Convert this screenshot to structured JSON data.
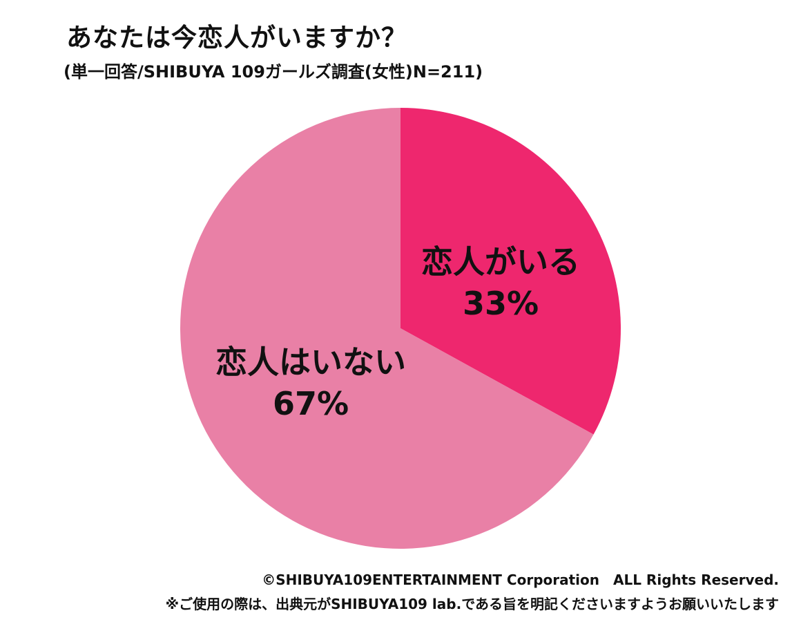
{
  "chart_data": {
    "type": "pie",
    "title": "あなたは今恋人がいますか？",
    "subtitle": "(単一回答/SHIBUYA 109ガールズ調査(女性)N=211)",
    "slices": [
      {
        "label": "恋人がいる",
        "value": 33,
        "value_label": "33%",
        "color": "#ee276e"
      },
      {
        "label": "恋人はいない",
        "value": 67,
        "value_label": "67%",
        "color": "#e980a6"
      }
    ]
  },
  "footer": {
    "copyright": "©SHIBUYA109ENTERTAINMENT Corporation　ALL Rights Reserved.",
    "notice": "※ご使用の際は、出典元がSHIBUYA109 lab.である旨を明記くださいますようお願いいたします"
  }
}
